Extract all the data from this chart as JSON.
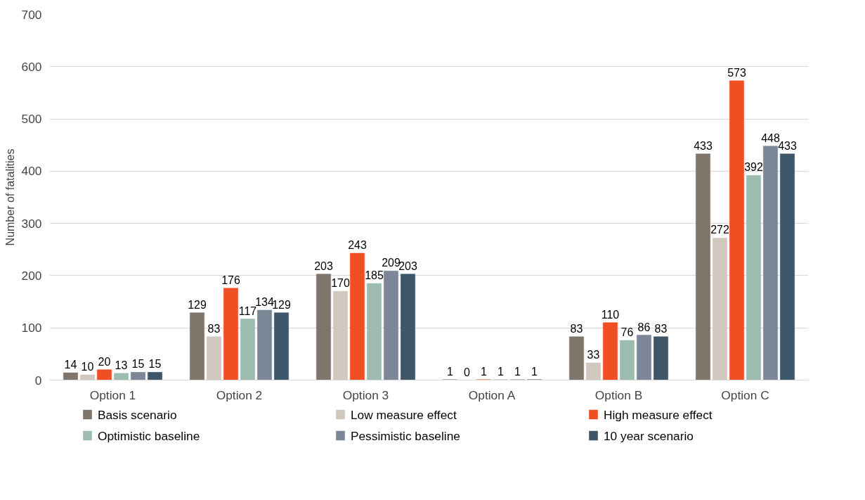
{
  "chart_data": {
    "type": "bar",
    "ylabel": "Number of fatalities",
    "categories": [
      "Option 1",
      "Option 2",
      "Option 3",
      "Option A",
      "Option B",
      "Option C"
    ],
    "series": [
      {
        "name": "Basis scenario",
        "color": "#7f756b",
        "values": [
          14,
          129,
          203,
          1,
          83,
          433
        ]
      },
      {
        "name": "Low measure effect",
        "color": "#d0c8bc",
        "values": [
          10,
          83,
          170,
          0,
          33,
          272
        ]
      },
      {
        "name": "High measure effect",
        "color": "#f04e23",
        "values": [
          20,
          176,
          243,
          1,
          110,
          573
        ]
      },
      {
        "name": "Optimistic baseline",
        "color": "#9dbcb0",
        "values": [
          13,
          117,
          185,
          1,
          76,
          392
        ]
      },
      {
        "name": "Pessimistic baseline",
        "color": "#7b8797",
        "values": [
          15,
          134,
          209,
          1,
          86,
          448
        ]
      },
      {
        "name": "10 year scenario",
        "color": "#3e5668",
        "values": [
          15,
          129,
          203,
          1,
          83,
          433
        ]
      }
    ],
    "ylim": [
      0,
      700
    ],
    "yticks": [
      0,
      100,
      200,
      300,
      400,
      500,
      600,
      700
    ],
    "grid": "y",
    "legend": "bottom",
    "data_labels": true
  }
}
